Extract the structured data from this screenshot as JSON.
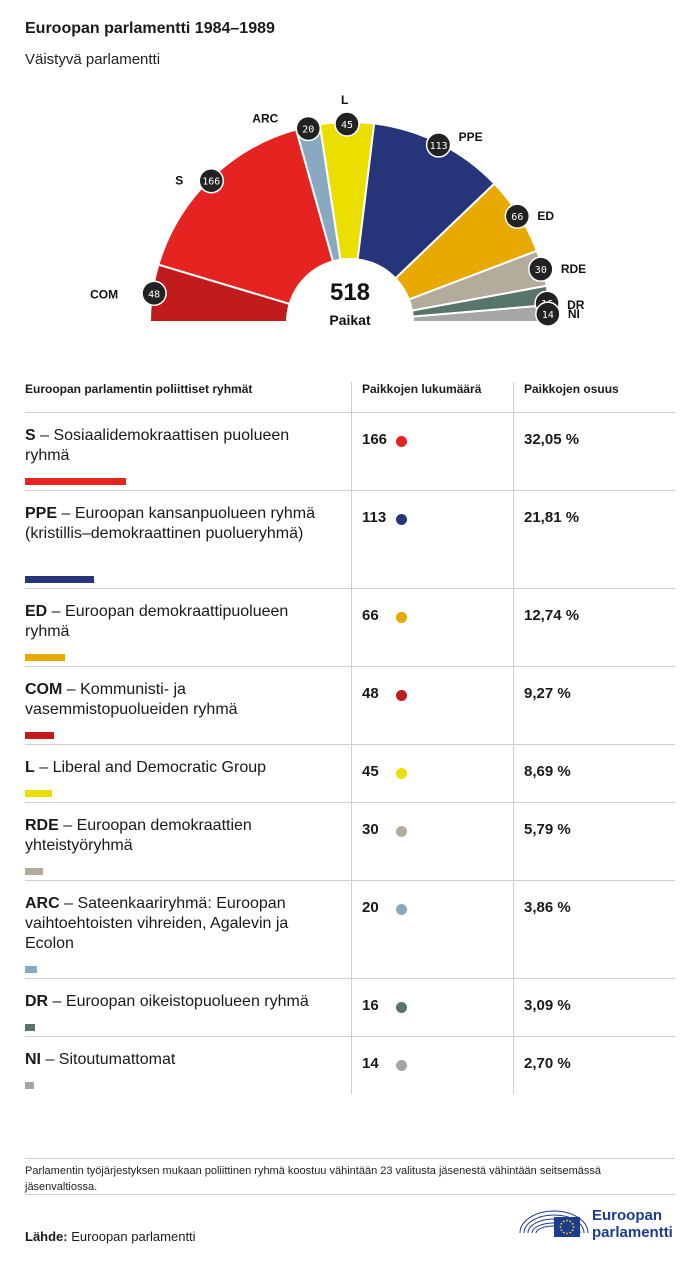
{
  "title": "Euroopan parlamentti 1984–1989",
  "subtitle": "Väistyvä parlamentti",
  "chart_data": {
    "type": "pie",
    "variant": "parliament-hemicycle",
    "total": "518",
    "total_label": "Paikat",
    "series": [
      {
        "name": "COM",
        "value": 48,
        "color": "#c21b1b"
      },
      {
        "name": "S",
        "value": 166,
        "color": "#e52421"
      },
      {
        "name": "ARC",
        "value": 20,
        "color": "#89a9c1"
      },
      {
        "name": "L",
        "value": 45,
        "color": "#ebdf00"
      },
      {
        "name": "PPE",
        "value": 113,
        "color": "#26347a"
      },
      {
        "name": "ED",
        "value": 66,
        "color": "#e8a900"
      },
      {
        "name": "RDE",
        "value": 30,
        "color": "#b5ab9c"
      },
      {
        "name": "DR",
        "value": 16,
        "color": "#577568"
      },
      {
        "name": "NI",
        "value": 14,
        "color": "#a6a6a6"
      }
    ]
  },
  "table": {
    "headers": [
      "Euroopan parlamentin poliittiset ryhmät",
      "Paikkojen lukumäärä",
      "Paikkojen osuus"
    ],
    "rows": [
      {
        "abbr": "S",
        "name": "Sosiaalidemokraattisen puolueen ryhmä",
        "count": "166",
        "pct": "32,05 %",
        "share": 0.3205,
        "color": "#e52421"
      },
      {
        "abbr": "PPE",
        "name": "Euroopan kansanpuolueen ryhmä (kristillis–demokraattinen puolueryhmä)",
        "count": "113",
        "pct": "21,81 %",
        "share": 0.2181,
        "color": "#26347a"
      },
      {
        "abbr": "ED",
        "name": "Euroopan demokraattipuolueen ryhmä",
        "count": "66",
        "pct": "12,74 %",
        "share": 0.1274,
        "color": "#e8a900"
      },
      {
        "abbr": "COM",
        "name": "Kommunisti- ja vasemmistopuolueiden ryhmä",
        "count": "48",
        "pct": "9,27 %",
        "share": 0.0927,
        "color": "#c21b1b"
      },
      {
        "abbr": "L",
        "name": "Liberal and Democratic Group",
        "count": "45",
        "pct": "8,69 %",
        "share": 0.0869,
        "color": "#ebdf00"
      },
      {
        "abbr": "RDE",
        "name": "Euroopan demokraattien yhteistyöryhmä",
        "count": "30",
        "pct": "5,79 %",
        "share": 0.0579,
        "color": "#b5ab9c"
      },
      {
        "abbr": "ARC",
        "name": "Sateenkaariryhmä: Euroopan vaihtoehtoisten vihreiden, Agalevin ja Ecolon",
        "count": "20",
        "pct": "3,86 %",
        "share": 0.0386,
        "color": "#89a9c1"
      },
      {
        "abbr": "DR",
        "name": "Euroopan oikeistopuolueen ryhmä",
        "count": "16",
        "pct": "3,09 %",
        "share": 0.0309,
        "color": "#577568"
      },
      {
        "abbr": "NI",
        "name": "Sitoutumattomat",
        "count": "14",
        "pct": "2,70 %",
        "share": 0.027,
        "color": "#a6a6a6"
      }
    ]
  },
  "note": "Parlamentin työjärjestyksen mukaan poliittinen ryhmä koostuu vähintään 23 valitusta jäsenestä vähintään seitsemässä jäsenvaltiossa.",
  "source_label": "Lähde:",
  "source_value": "Euroopan parlamentti",
  "logo": {
    "line1": "Euroopan",
    "line2": "parlamentti",
    "flag_color": "#1d3c8f"
  }
}
